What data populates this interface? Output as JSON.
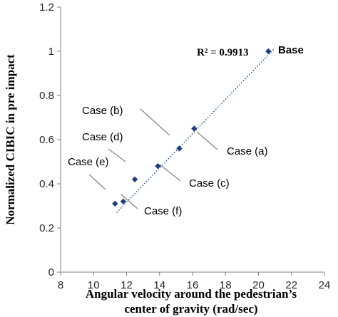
{
  "chart_data": {
    "type": "scatter",
    "xlabel_lines": [
      "Angular velocity around the pedestrian’s",
      "center of gravity (rad/sec)"
    ],
    "ylabel": "Normalized CIBIC in pre impact",
    "xlim": [
      8,
      24
    ],
    "ylim": [
      0,
      1.2
    ],
    "x_ticks": [
      "8",
      "10",
      "12",
      "14",
      "16",
      "18",
      "20",
      "22",
      "24"
    ],
    "y_ticks": [
      "0",
      "0.2",
      "0.4",
      "0.6",
      "0.8",
      "1",
      "1.2"
    ],
    "grid": false,
    "marker_color": "#1f3d7a",
    "trendline": {
      "style": "dotted",
      "color": "#2e5fa8",
      "x": [
        11.4,
        21.0
      ],
      "y": [
        0.27,
        1.015
      ]
    },
    "r_squared_label": "R² = 0.9913",
    "points": [
      {
        "label": "Base",
        "x": 20.6,
        "y": 1.0
      },
      {
        "label": "Case (a)",
        "x": 16.1,
        "y": 0.65
      },
      {
        "label": "Case (b)",
        "x": 15.2,
        "y": 0.56
      },
      {
        "label": "Case (c)",
        "x": 13.9,
        "y": 0.48
      },
      {
        "label": "Case (d)",
        "x": 12.5,
        "y": 0.42
      },
      {
        "label": "Case (e)",
        "x": 11.8,
        "y": 0.32
      },
      {
        "label": "Case (f)",
        "x": 11.3,
        "y": 0.31
      }
    ]
  }
}
